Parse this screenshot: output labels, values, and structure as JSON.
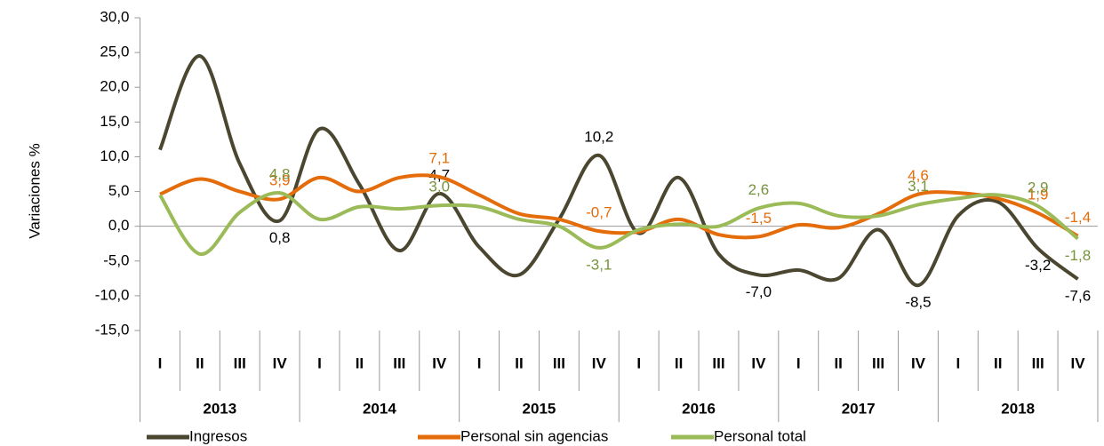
{
  "chart_data": {
    "type": "line",
    "y_label": "Variaciones %",
    "categories": [
      "I",
      "II",
      "III",
      "IV",
      "I",
      "II",
      "III",
      "IV",
      "I",
      "II",
      "III",
      "IV",
      "I",
      "II",
      "III",
      "IV",
      "I",
      "II",
      "III",
      "IV",
      "I",
      "II",
      "III",
      "IV"
    ],
    "groups": [
      "2013",
      "2014",
      "2015",
      "2016",
      "2017",
      "2018"
    ],
    "ylim": [
      -15,
      30
    ],
    "yticks": [
      {
        "value": -15,
        "label": "-15,0"
      },
      {
        "value": -10,
        "label": "-10,0"
      },
      {
        "value": -5,
        "label": "-5,0"
      },
      {
        "value": 0,
        "label": "0,0"
      },
      {
        "value": 5,
        "label": "5,0"
      },
      {
        "value": 10,
        "label": "10,0"
      },
      {
        "value": 15,
        "label": "15,0"
      },
      {
        "value": 20,
        "label": "20,0"
      },
      {
        "value": 25,
        "label": "25,0"
      },
      {
        "value": 30,
        "label": "30,0"
      }
    ],
    "series": [
      {
        "name": "Ingresos",
        "color": "#4a4630",
        "label_color": "#000000",
        "values": [
          11,
          24.5,
          9,
          0.8,
          14,
          6,
          -3.5,
          4.7,
          -3,
          -7,
          1,
          10.2,
          -1,
          7,
          -4,
          -7.0,
          -6.3,
          -7.5,
          -0.5,
          -8.5,
          1.5,
          3.5,
          -3.2,
          -7.6
        ],
        "value_labels": [
          null,
          null,
          null,
          "0,8",
          null,
          null,
          null,
          "4,7",
          null,
          null,
          null,
          "10,2",
          null,
          null,
          null,
          "-7,0",
          null,
          null,
          null,
          "-8,5",
          null,
          null,
          "-3,2",
          "-7,6"
        ]
      },
      {
        "name": "Personal sin agencias",
        "color": "#e46c0a",
        "label_color": "#e46c0a",
        "values": [
          4.6,
          6.8,
          5,
          3.9,
          7,
          5,
          7,
          7.1,
          4.5,
          1.8,
          1,
          -0.7,
          -0.8,
          1,
          -1.2,
          -1.5,
          0.2,
          -0.2,
          1.8,
          4.6,
          4.8,
          4,
          1.9,
          -1.4
        ],
        "value_labels": [
          null,
          null,
          null,
          "3,9",
          null,
          null,
          null,
          "7,1",
          null,
          null,
          null,
          "-0,7",
          null,
          null,
          null,
          "-1,5",
          null,
          null,
          null,
          "4,6",
          null,
          null,
          "1,9",
          "-1,4"
        ]
      },
      {
        "name": "Personal total",
        "color": "#9bbb59",
        "label_color": "#77933c",
        "values": [
          4.5,
          -4,
          2,
          4.8,
          1,
          2.8,
          2.5,
          3.0,
          2.8,
          1,
          0,
          -3.1,
          -0.5,
          0.3,
          0,
          2.6,
          3.3,
          1.5,
          1.5,
          3.1,
          4,
          4.5,
          2.9,
          -1.8
        ],
        "value_labels": [
          null,
          null,
          null,
          "4,8",
          null,
          null,
          null,
          "3,0",
          null,
          null,
          null,
          "-3,1",
          null,
          null,
          null,
          "2,6",
          null,
          null,
          null,
          "3,1",
          null,
          null,
          "2,9",
          "-1,8"
        ]
      }
    ]
  }
}
